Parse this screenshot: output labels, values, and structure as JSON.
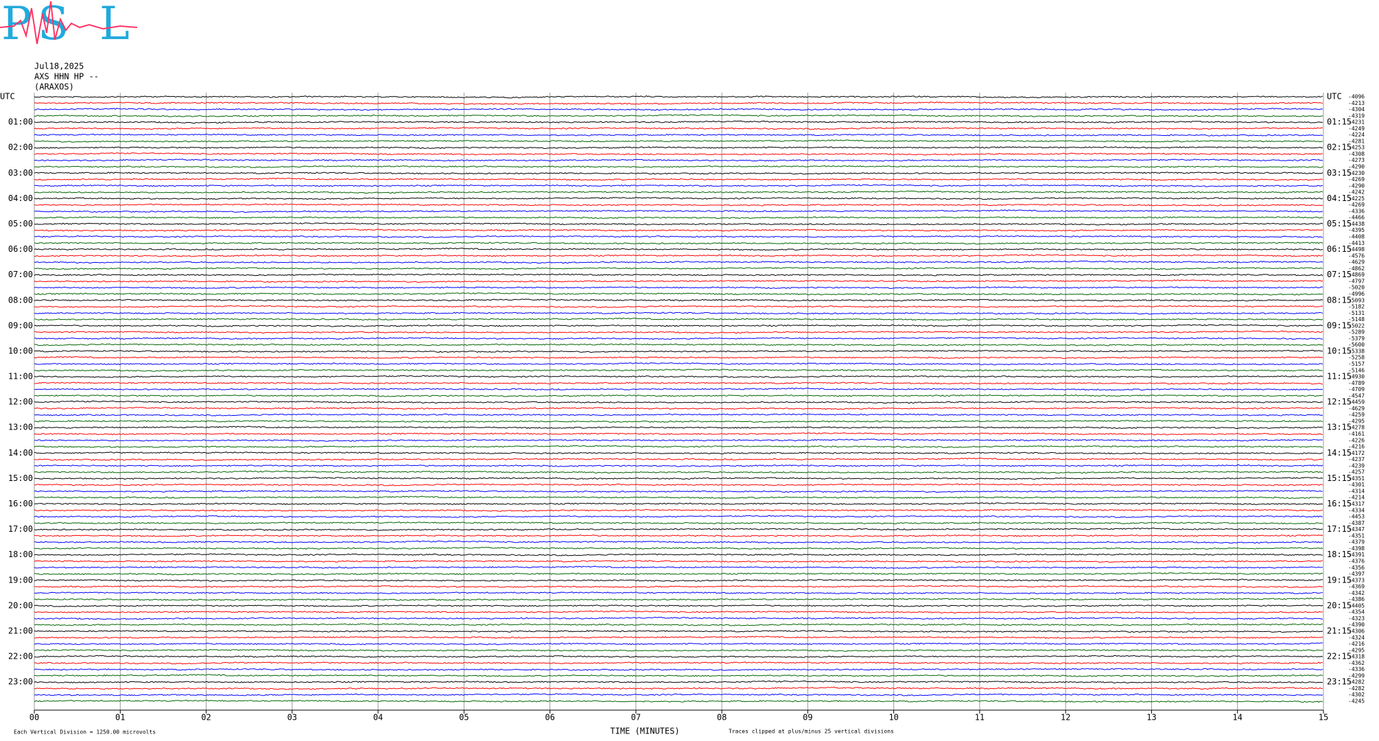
{
  "header": {
    "logo": [
      "P",
      "S",
      "L"
    ],
    "date": "Jul18,2025",
    "station": "AXS HHN HP --",
    "site": "(ARAXOS)"
  },
  "chart_data": {
    "type": "helicorder",
    "left_labels": [
      "UTC",
      "01:00",
      "02:00",
      "03:00",
      "04:00",
      "05:00",
      "06:00",
      "07:00",
      "08:00",
      "09:00",
      "10:00",
      "11:00",
      "12:00",
      "13:00",
      "14:00",
      "15:00",
      "16:00",
      "17:00",
      "18:00",
      "19:00",
      "20:00",
      "21:00",
      "22:00",
      "23:00"
    ],
    "right_labels": [
      "UTC",
      "01:15",
      "02:15",
      "03:15",
      "04:15",
      "05:15",
      "06:15",
      "07:15",
      "08:15",
      "09:15",
      "10:15",
      "11:15",
      "12:15",
      "13:15",
      "14:15",
      "15:15",
      "16:15",
      "17:15",
      "18:15",
      "19:15",
      "20:15",
      "21:15",
      "22:15",
      "23:15"
    ],
    "trace_labels": [
      -4096,
      -4213,
      -4304,
      -4319,
      -4231,
      -4249,
      -4224,
      -4281,
      -4253,
      -4308,
      -4273,
      -4290,
      -4230,
      -4269,
      -4290,
      -4242,
      -4225,
      -4269,
      -4336,
      -4466,
      -4438,
      -4395,
      -4408,
      -4413,
      -4498,
      -4576,
      -4629,
      -4862,
      -4869,
      -4797,
      -5020,
      -4996,
      -5093,
      -5182,
      -5131,
      -5148,
      -5022,
      -5289,
      -5379,
      -5600,
      -5338,
      -5258,
      -5157,
      -5146,
      -4930,
      -4789,
      -4709,
      -4547,
      -4459,
      -4629,
      -4259,
      -4295,
      -4278,
      -4161,
      -4226,
      -4216,
      -4172,
      -4237,
      -4239,
      -4257,
      -4351,
      -4301,
      -4314,
      -4214,
      -4317,
      -4334,
      -4453,
      -4387,
      -4347,
      -4351,
      -4379,
      -4398,
      -4391,
      -4376,
      -4356,
      -4397,
      -4373,
      -4369,
      -4342,
      -4386,
      -4405,
      -4354,
      -4323,
      -4390,
      -4306,
      -4324,
      -4216,
      -4295,
      -4318,
      -4362,
      -4336,
      -4299,
      -4282,
      -4282,
      -4302,
      -4245
    ],
    "colors": [
      "#000000",
      "#ff0000",
      "#0000ff",
      "#006400"
    ],
    "xlabel": "TIME (MINUTES)",
    "xlim": [
      0,
      15
    ],
    "xticks": [
      {
        "value": 0,
        "label": "00"
      },
      {
        "value": 1,
        "label": "01"
      },
      {
        "value": 2,
        "label": "02"
      },
      {
        "value": 3,
        "label": "03"
      },
      {
        "value": 4,
        "label": "04"
      },
      {
        "value": 5,
        "label": "05"
      },
      {
        "value": 6,
        "label": "06"
      },
      {
        "value": 7,
        "label": "07"
      },
      {
        "value": 8,
        "label": "08"
      },
      {
        "value": 9,
        "label": "09"
      },
      10,
      11,
      12,
      13,
      14,
      15
    ],
    "grid": true,
    "note_left": "Each Vertical Division = 1250.00 microvolts",
    "note_right": "Traces clipped at plus/minus 25 vertical divisions"
  }
}
